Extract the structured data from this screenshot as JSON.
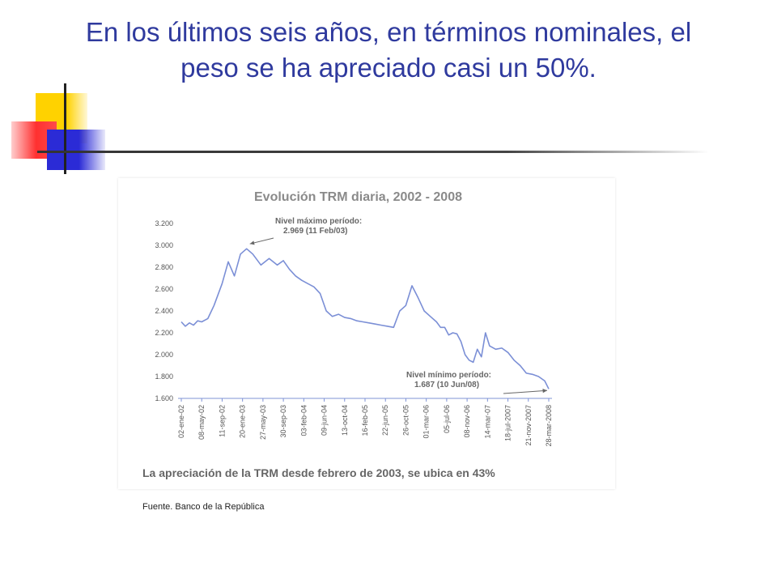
{
  "slide": {
    "title": "En los últimos seis años, en términos nominales, el peso se ha apreciado casi un 50%.",
    "source": "Fuente. Banco de la República"
  },
  "chart_data": {
    "type": "line",
    "title": "Evolución TRM diaria, 2002 - 2008",
    "caption": "La apreciación de la TRM desde febrero de 2003, se ubica en 43%",
    "xlabel": "",
    "ylabel": "",
    "ylim": [
      1600,
      3200
    ],
    "y_ticks": [
      "3.200",
      "3.000",
      "2.800",
      "2.600",
      "2.400",
      "2.200",
      "2.000",
      "1.800",
      "1.600"
    ],
    "y_tick_values": [
      3200,
      3000,
      2800,
      2600,
      2400,
      2200,
      2000,
      1800,
      1600
    ],
    "x_ticks": [
      "02-ene-02",
      "08-may-02",
      "11-sep-02",
      "20-ene-03",
      "27-may-03",
      "30-sep-03",
      "03-feb-04",
      "09-jun-04",
      "13-oct-04",
      "16-feb-05",
      "22-jun-05",
      "26-oct-05",
      "01-mar-06",
      "05-jul-06",
      "08-nov-06",
      "14-mar-07",
      "18-jul-2007",
      "21-nov-2007",
      "28-mar-2008"
    ],
    "grid": false,
    "legend": "none",
    "series": [
      {
        "color": "#7b8fd6",
        "x": [
          0.0,
          0.2,
          0.4,
          0.6,
          0.8,
          1.0,
          1.3,
          1.6,
          2.0,
          2.3,
          2.6,
          2.9,
          3.2,
          3.5,
          3.9,
          4.3,
          4.7,
          5.0,
          5.3,
          5.6,
          5.9,
          6.2,
          6.5,
          6.8,
          7.1,
          7.4,
          7.7,
          8.0,
          8.3,
          8.6,
          8.9,
          9.2,
          9.5,
          9.8,
          10.1,
          10.4,
          10.7,
          11.0,
          11.3,
          11.6,
          11.9,
          12.2,
          12.5,
          12.7,
          12.9,
          13.1,
          13.3,
          13.5,
          13.7,
          13.9,
          14.1,
          14.3,
          14.5,
          14.7,
          14.9,
          15.1,
          15.4,
          15.7,
          16.0,
          16.3,
          16.6,
          16.9,
          17.2,
          17.5,
          17.8,
          18.0
        ],
        "values": [
          2300,
          2260,
          2290,
          2270,
          2310,
          2300,
          2330,
          2450,
          2650,
          2850,
          2720,
          2920,
          2969,
          2920,
          2820,
          2880,
          2820,
          2860,
          2780,
          2720,
          2680,
          2650,
          2620,
          2560,
          2400,
          2350,
          2370,
          2340,
          2330,
          2310,
          2300,
          2290,
          2280,
          2270,
          2260,
          2250,
          2400,
          2450,
          2630,
          2520,
          2400,
          2350,
          2300,
          2250,
          2250,
          2180,
          2200,
          2190,
          2120,
          2000,
          1950,
          1930,
          2050,
          1980,
          2200,
          2080,
          2050,
          2060,
          2020,
          1950,
          1900,
          1830,
          1820,
          1800,
          1760,
          1687
        ]
      }
    ],
    "annotations": [
      {
        "lines": [
          "Nivel máximo período:",
          "2.969 (11 Feb/03)"
        ]
      },
      {
        "lines": [
          "Nivel mínimo período:",
          "1.687 (10 Jun/08)"
        ]
      }
    ]
  }
}
